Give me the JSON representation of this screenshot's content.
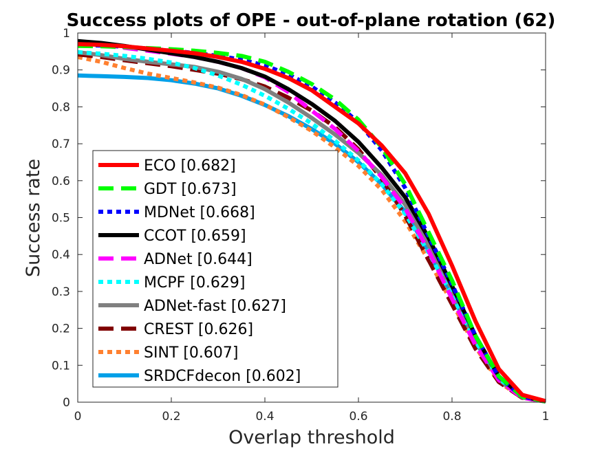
{
  "chart_data": {
    "type": "line",
    "title": "Success plots of OPE - out-of-plane rotation (62)",
    "xlabel": "Overlap threshold",
    "ylabel": "Success rate",
    "xlim": [
      0,
      1
    ],
    "ylim": [
      0,
      1
    ],
    "x_ticks": [
      "0",
      "0.2",
      "0.4",
      "0.6",
      "0.8",
      "1"
    ],
    "y_ticks": [
      "0",
      "0.1",
      "0.2",
      "0.3",
      "0.4",
      "0.5",
      "0.6",
      "0.7",
      "0.8",
      "0.9",
      "1"
    ],
    "legend_position": "left-center",
    "x": [
      0,
      0.05,
      0.1,
      0.15,
      0.2,
      0.25,
      0.3,
      0.35,
      0.4,
      0.45,
      0.5,
      0.55,
      0.6,
      0.65,
      0.7,
      0.75,
      0.8,
      0.85,
      0.9,
      0.95,
      1.0
    ],
    "series": [
      {
        "name": "ECO",
        "label": "ECO [0.682]",
        "color": "#ff0000",
        "dash": "solid",
        "values": [
          0.97,
          0.968,
          0.964,
          0.958,
          0.952,
          0.945,
          0.935,
          0.922,
          0.903,
          0.878,
          0.845,
          0.8,
          0.755,
          0.695,
          0.62,
          0.51,
          0.37,
          0.22,
          0.09,
          0.02,
          0.003
        ]
      },
      {
        "name": "GDT",
        "label": "GDT [0.673]",
        "color": "#00ff00",
        "dash": "dash",
        "values": [
          0.965,
          0.964,
          0.962,
          0.959,
          0.956,
          0.952,
          0.946,
          0.938,
          0.922,
          0.895,
          0.862,
          0.82,
          0.765,
          0.69,
          0.59,
          0.46,
          0.33,
          0.18,
          0.07,
          0.015,
          0.002
        ]
      },
      {
        "name": "MDNet",
        "label": "MDNet [0.668]",
        "color": "#0000ff",
        "dash": "dot",
        "values": [
          0.968,
          0.966,
          0.963,
          0.958,
          0.952,
          0.946,
          0.938,
          0.928,
          0.912,
          0.888,
          0.855,
          0.812,
          0.758,
          0.682,
          0.58,
          0.45,
          0.32,
          0.18,
          0.068,
          0.015,
          0.002
        ]
      },
      {
        "name": "CCOT",
        "label": "CCOT [0.659]",
        "color": "#000000",
        "dash": "solid",
        "values": [
          0.978,
          0.973,
          0.965,
          0.955,
          0.945,
          0.935,
          0.922,
          0.905,
          0.882,
          0.848,
          0.808,
          0.762,
          0.705,
          0.635,
          0.555,
          0.445,
          0.315,
          0.18,
          0.07,
          0.016,
          0.002
        ]
      },
      {
        "name": "ADNet",
        "label": "ADNet [0.644]",
        "color": "#ff00ff",
        "dash": "dash",
        "values": [
          0.97,
          0.966,
          0.96,
          0.952,
          0.944,
          0.935,
          0.922,
          0.905,
          0.88,
          0.84,
          0.79,
          0.74,
          0.68,
          0.61,
          0.525,
          0.41,
          0.28,
          0.155,
          0.06,
          0.012,
          0.002
        ]
      },
      {
        "name": "MCPF",
        "label": "MCPF [0.629]",
        "color": "#00ffff",
        "dash": "dot",
        "values": [
          0.948,
          0.944,
          0.938,
          0.93,
          0.92,
          0.905,
          0.885,
          0.86,
          0.83,
          0.795,
          0.755,
          0.708,
          0.655,
          0.59,
          0.51,
          0.405,
          0.29,
          0.165,
          0.065,
          0.014,
          0.002
        ]
      },
      {
        "name": "ADNet-fast",
        "label": "ADNet-fast [0.627]",
        "color": "#808080",
        "dash": "solid",
        "values": [
          0.948,
          0.94,
          0.93,
          0.922,
          0.915,
          0.908,
          0.895,
          0.876,
          0.848,
          0.812,
          0.77,
          0.725,
          0.675,
          0.615,
          0.535,
          0.425,
          0.305,
          0.17,
          0.062,
          0.013,
          0.002
        ]
      },
      {
        "name": "CREST",
        "label": "CREST [0.626]",
        "color": "#800000",
        "dash": "dash",
        "values": [
          0.942,
          0.935,
          0.926,
          0.918,
          0.91,
          0.9,
          0.89,
          0.875,
          0.855,
          0.825,
          0.79,
          0.745,
          0.685,
          0.605,
          0.505,
          0.385,
          0.265,
          0.145,
          0.055,
          0.012,
          0.002
        ]
      },
      {
        "name": "SINT",
        "label": "SINT [0.607]",
        "color": "#ff8030",
        "dash": "dot",
        "values": [
          0.935,
          0.922,
          0.905,
          0.89,
          0.878,
          0.866,
          0.852,
          0.832,
          0.806,
          0.772,
          0.735,
          0.69,
          0.64,
          0.575,
          0.49,
          0.385,
          0.27,
          0.15,
          0.055,
          0.012,
          0.002
        ]
      },
      {
        "name": "SRDCFdecon",
        "label": "SRDCFdecon [0.602]",
        "color": "#00a0e8",
        "dash": "solid",
        "values": [
          0.885,
          0.883,
          0.881,
          0.878,
          0.872,
          0.863,
          0.85,
          0.83,
          0.805,
          0.775,
          0.74,
          0.7,
          0.65,
          0.59,
          0.515,
          0.41,
          0.29,
          0.165,
          0.06,
          0.013,
          0.002
        ]
      }
    ]
  }
}
